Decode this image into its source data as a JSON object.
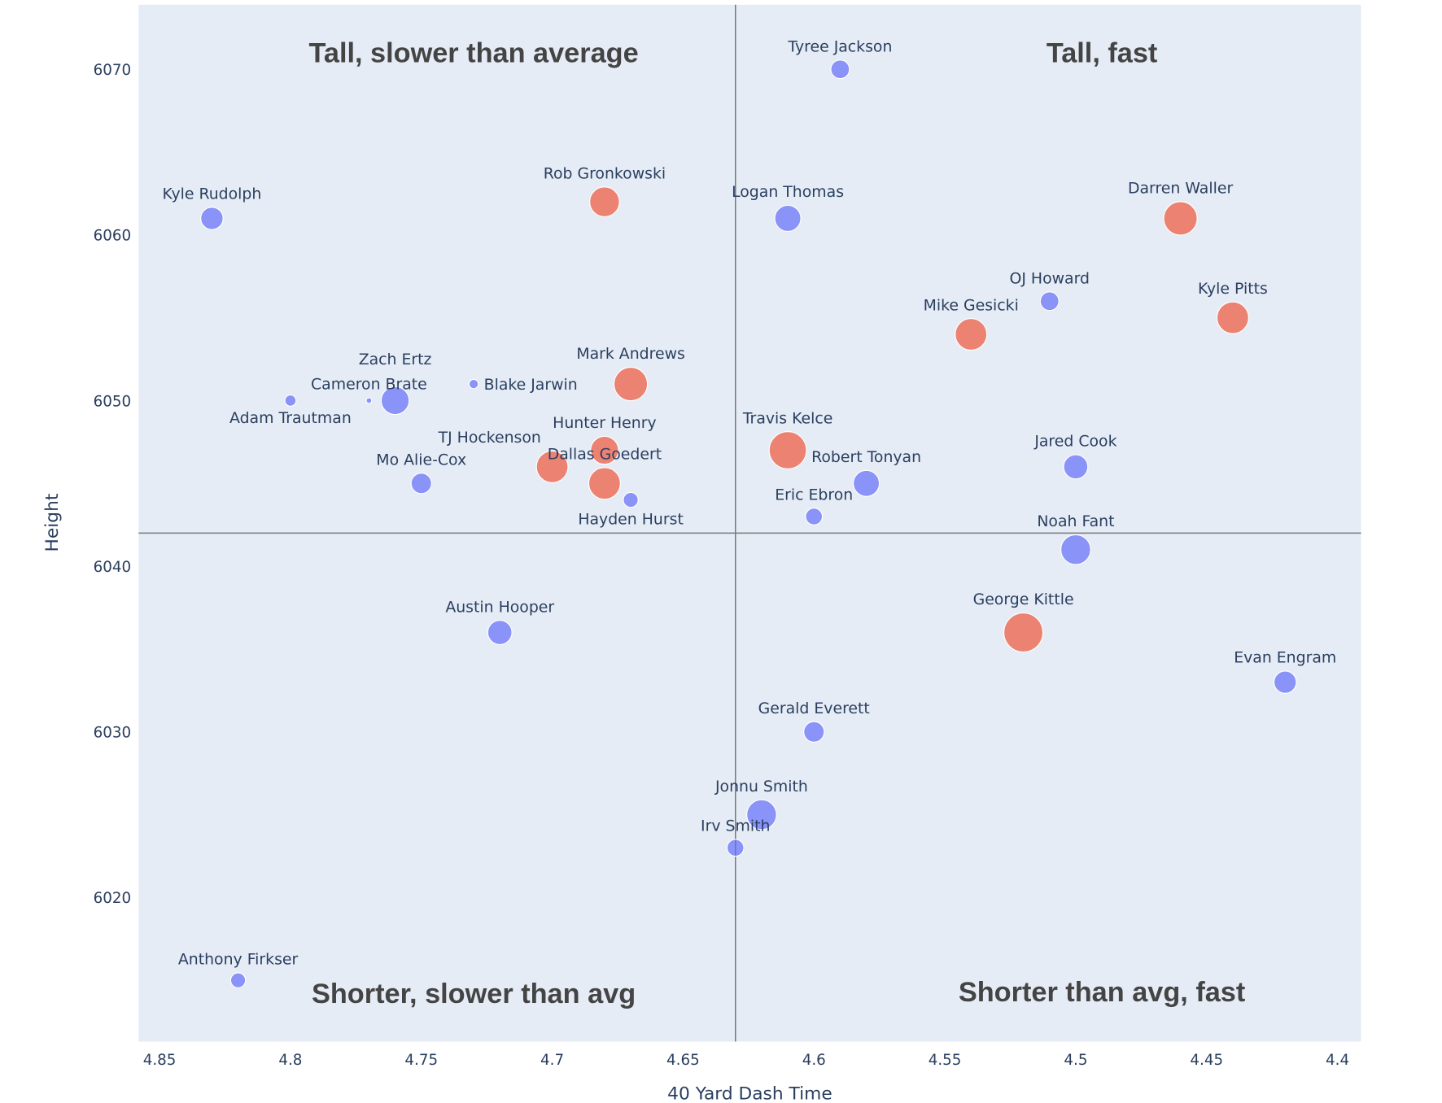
{
  "chart_data": {
    "type": "scatter",
    "title": "",
    "xlabel": "40 Yard Dash Time",
    "ylabel": "Height",
    "xlim": [
      4.858,
      4.391
    ],
    "x_reversed": true,
    "ylim": [
      6011.3,
      6073.9
    ],
    "x_ticks": [
      "4.85",
      "4.8",
      "4.75",
      "4.7",
      "4.65",
      "4.6",
      "4.55",
      "4.5",
      "4.45",
      "4.4"
    ],
    "y_ticks": [
      "6020",
      "6030",
      "6040",
      "6050",
      "6060",
      "6070"
    ],
    "grid": false,
    "background": "#e5ecf6",
    "reference_lines": {
      "x": 4.63,
      "y": 6042
    },
    "colors": {
      "blue": "#636efa",
      "red": "#ef553b"
    },
    "annotations": [
      {
        "text": "Tall, slower than average",
        "x": 4.73,
        "y": 6071
      },
      {
        "text": "Tall, fast",
        "x": 4.49,
        "y": 6071
      },
      {
        "text": "Shorter, slower than avg",
        "x": 4.73,
        "y": 6014.2
      },
      {
        "text": "Shorter than avg, fast",
        "x": 4.49,
        "y": 6014.3
      }
    ],
    "points": [
      {
        "name": "Tyree Jackson",
        "x": 4.59,
        "y": 6070,
        "size": 10,
        "color": "blue"
      },
      {
        "name": "Rob Gronkowski",
        "x": 4.68,
        "y": 6062,
        "size": 16,
        "color": "red"
      },
      {
        "name": "Logan Thomas",
        "x": 4.61,
        "y": 6061,
        "size": 14,
        "color": "blue"
      },
      {
        "name": "Darren Waller",
        "x": 4.46,
        "y": 6061,
        "size": 18,
        "color": "red"
      },
      {
        "name": "Kyle Rudolph",
        "x": 4.83,
        "y": 6061,
        "size": 12,
        "color": "blue"
      },
      {
        "name": "OJ Howard",
        "x": 4.51,
        "y": 6056,
        "size": 10,
        "color": "blue"
      },
      {
        "name": "Kyle Pitts",
        "x": 4.44,
        "y": 6055,
        "size": 17,
        "color": "red"
      },
      {
        "name": "Mike Gesicki",
        "x": 4.54,
        "y": 6054,
        "size": 17,
        "color": "red"
      },
      {
        "name": "Mark Andrews",
        "x": 4.67,
        "y": 6051,
        "size": 18,
        "color": "red"
      },
      {
        "name": "Blake Jarwin",
        "x": 4.73,
        "y": 6051,
        "size": 5,
        "color": "blue"
      },
      {
        "name": "Adam Trautman",
        "x": 4.8,
        "y": 6050,
        "size": 6,
        "color": "blue"
      },
      {
        "name": "Cameron Brate",
        "x": 4.77,
        "y": 6050,
        "size": 3,
        "color": "blue"
      },
      {
        "name": "Zach Ertz",
        "x": 4.76,
        "y": 6050,
        "size": 15,
        "color": "blue"
      },
      {
        "name": "Hunter Henry",
        "x": 4.68,
        "y": 6047,
        "size": 15,
        "color": "red"
      },
      {
        "name": "TJ Hockenson",
        "x": 4.7,
        "y": 6046,
        "size": 17,
        "color": "red"
      },
      {
        "name": "Dallas Goedert",
        "x": 4.68,
        "y": 6045,
        "size": 17,
        "color": "red"
      },
      {
        "name": "Hayden Hurst",
        "x": 4.67,
        "y": 6044,
        "size": 8,
        "color": "blue"
      },
      {
        "name": "Mo Alie-Cox",
        "x": 4.75,
        "y": 6045,
        "size": 11,
        "color": "blue"
      },
      {
        "name": "Travis Kelce",
        "x": 4.61,
        "y": 6047,
        "size": 20,
        "color": "red"
      },
      {
        "name": "Robert Tonyan",
        "x": 4.58,
        "y": 6045,
        "size": 14,
        "color": "blue"
      },
      {
        "name": "Eric Ebron",
        "x": 4.6,
        "y": 6043,
        "size": 9,
        "color": "blue"
      },
      {
        "name": "Jared Cook",
        "x": 4.5,
        "y": 6046,
        "size": 13,
        "color": "blue"
      },
      {
        "name": "Noah Fant",
        "x": 4.5,
        "y": 6041,
        "size": 16,
        "color": "blue"
      },
      {
        "name": "George Kittle",
        "x": 4.52,
        "y": 6036,
        "size": 21,
        "color": "red"
      },
      {
        "name": "Evan Engram",
        "x": 4.42,
        "y": 6033,
        "size": 12,
        "color": "blue"
      },
      {
        "name": "Austin Hooper",
        "x": 4.72,
        "y": 6036,
        "size": 13,
        "color": "blue"
      },
      {
        "name": "Gerald Everett",
        "x": 4.6,
        "y": 6030,
        "size": 11,
        "color": "blue"
      },
      {
        "name": "Jonnu Smith",
        "x": 4.62,
        "y": 6025,
        "size": 16,
        "color": "blue"
      },
      {
        "name": "Irv Smith",
        "x": 4.63,
        "y": 6023,
        "size": 9,
        "color": "blue"
      },
      {
        "name": "Anthony Firkser",
        "x": 4.82,
        "y": 6015,
        "size": 8,
        "color": "blue"
      }
    ]
  }
}
